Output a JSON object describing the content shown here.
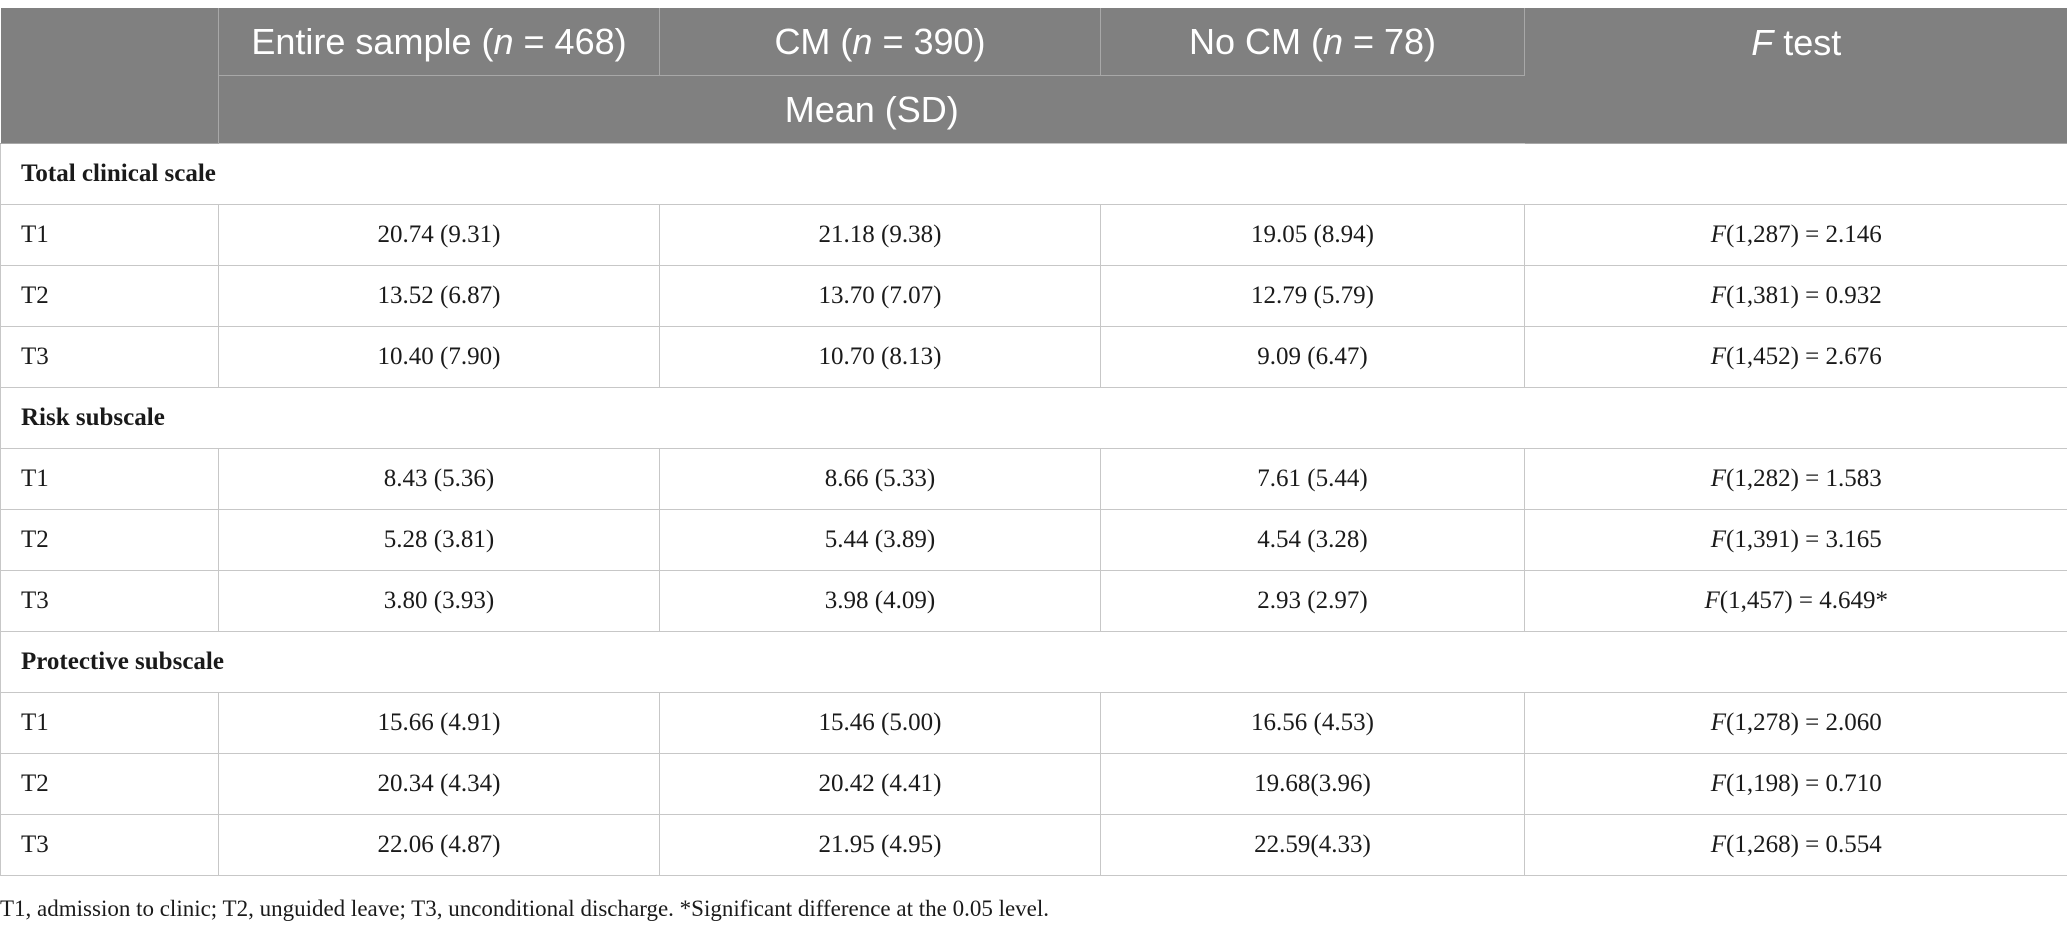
{
  "table": {
    "header": {
      "blank": "",
      "entire_prefix": "Entire sample (",
      "entire_n": "n",
      "entire_suffix": " = 468)",
      "cm_prefix": "CM (",
      "cm_n": "n",
      "cm_suffix": " = 390)",
      "nocm_prefix": "No CM (",
      "nocm_n": "n",
      "nocm_suffix": " = 78)",
      "ftest_f": "F",
      "ftest_suffix": " test",
      "subheader": "Mean (SD)"
    },
    "sections": [
      {
        "title": "Total clinical scale",
        "rows": [
          {
            "label": "T1",
            "entire": "20.74 (9.31)",
            "cm": "21.18 (9.38)",
            "nocm": "19.05 (8.94)",
            "f_letter": "F",
            "f_value": "(1,287) = 2.146"
          },
          {
            "label": "T2",
            "entire": "13.52 (6.87)",
            "cm": "13.70 (7.07)",
            "nocm": "12.79 (5.79)",
            "f_letter": "F",
            "f_value": "(1,381) = 0.932"
          },
          {
            "label": "T3",
            "entire": "10.40 (7.90)",
            "cm": "10.70 (8.13)",
            "nocm": "9.09 (6.47)",
            "f_letter": "F",
            "f_value": "(1,452) = 2.676"
          }
        ]
      },
      {
        "title": "Risk subscale",
        "rows": [
          {
            "label": "T1",
            "entire": "8.43 (5.36)",
            "cm": "8.66 (5.33)",
            "nocm": "7.61 (5.44)",
            "f_letter": "F",
            "f_value": "(1,282) = 1.583"
          },
          {
            "label": "T2",
            "entire": "5.28 (3.81)",
            "cm": "5.44 (3.89)",
            "nocm": "4.54 (3.28)",
            "f_letter": "F",
            "f_value": "(1,391) = 3.165"
          },
          {
            "label": "T3",
            "entire": "3.80 (3.93)",
            "cm": "3.98 (4.09)",
            "nocm": "2.93 (2.97)",
            "f_letter": "F",
            "f_value": "(1,457) = 4.649*"
          }
        ]
      },
      {
        "title": "Protective subscale",
        "rows": [
          {
            "label": "T1",
            "entire": "15.66 (4.91)",
            "cm": "15.46 (5.00)",
            "nocm": "16.56 (4.53)",
            "f_letter": "F",
            "f_value": "(1,278) = 2.060"
          },
          {
            "label": "T2",
            "entire": "20.34 (4.34)",
            "cm": "20.42 (4.41)",
            "nocm": "19.68(3.96)",
            "f_letter": "F",
            "f_value": "(1,198) = 0.710"
          },
          {
            "label": "T3",
            "entire": "22.06 (4.87)",
            "cm": "21.95 (4.95)",
            "nocm": "22.59(4.33)",
            "f_letter": "F",
            "f_value": "(1,268) = 0.554"
          }
        ]
      }
    ]
  },
  "footnote": "T1, admission to clinic; T2, unguided leave; T3, unconditional discharge. *Significant difference at the 0.05 level."
}
